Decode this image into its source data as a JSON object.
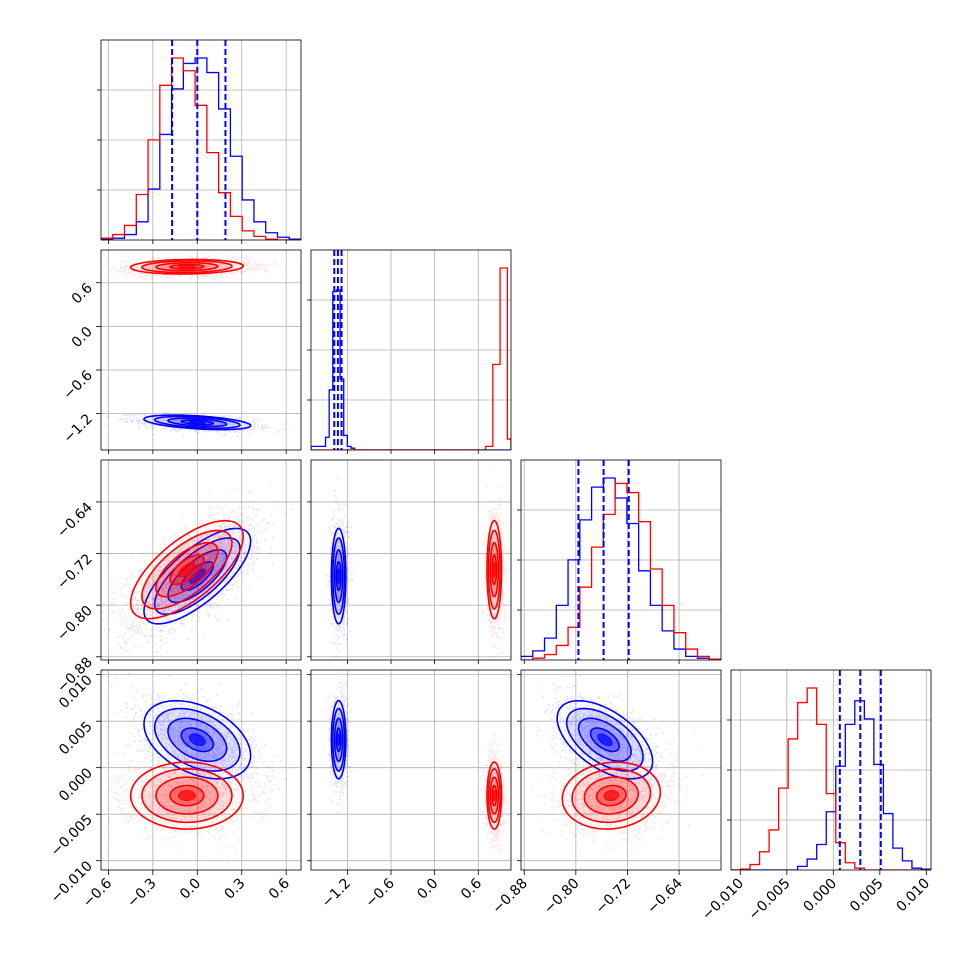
{
  "chart_data": {
    "type": "corner",
    "parameters": 4,
    "series": [
      {
        "name": "",
        "color": "#ff0000"
      },
      {
        "name": "",
        "color": "#0000ff"
      }
    ],
    "ranges": [
      [
        -0.65,
        0.7
      ],
      [
        -1.7,
        1.05
      ],
      [
        -0.885,
        -0.575
      ],
      [
        -0.011,
        0.0105
      ]
    ],
    "ticks": [
      {
        "values": [
          -0.6,
          -0.3,
          0.0,
          0.3,
          0.6
        ],
        "labels": [
          "−0.6",
          "−0.3",
          "0.0",
          "0.3",
          "0.6"
        ]
      },
      {
        "values": [
          -1.2,
          -0.6,
          0.0,
          0.6
        ],
        "labels": [
          "−1.2",
          "−0.6",
          "0.0",
          "0.6"
        ]
      },
      {
        "values": [
          -0.88,
          -0.8,
          -0.72,
          -0.64
        ],
        "labels": [
          "−0.88",
          "−0.80",
          "−0.72",
          "−0.64"
        ]
      },
      {
        "values": [
          -0.01,
          -0.005,
          0.0,
          0.005,
          0.01
        ],
        "labels": [
          "−0.010",
          "−0.005",
          "0.000",
          "0.005",
          "0.010"
        ]
      }
    ],
    "quantile_lines_blue": [
      [
        -0.17,
        0.0,
        0.19
      ],
      [
        -1.38,
        -1.33,
        -1.28
      ],
      [
        -0.796,
        -0.757,
        -0.718
      ],
      [
        0.0007,
        0.0029,
        0.0051
      ]
    ],
    "histograms": [
      {
        "blue": [
          0.005,
          0.01,
          0.03,
          0.1,
          0.28,
          0.58,
          0.83,
          0.97,
          1.0,
          0.92,
          0.72,
          0.46,
          0.22,
          0.1,
          0.04,
          0.015,
          0.005
        ],
        "red": [
          0.01,
          0.03,
          0.08,
          0.25,
          0.55,
          0.85,
          1.0,
          0.93,
          0.74,
          0.48,
          0.26,
          0.13,
          0.05,
          0.02,
          0.005,
          0.0,
          0.0
        ]
      },
      {
        "bins": [
          -1.7,
          -1.5,
          -1.45,
          -1.4,
          -1.35,
          -1.3,
          -1.25,
          -1.2,
          -1.15,
          -1.1,
          0.7,
          0.8,
          0.9,
          1.0,
          1.05
        ],
        "blue": [
          0.02,
          0.07,
          0.33,
          0.87,
          0.88,
          0.39,
          0.08,
          0.02,
          0.01,
          0.0,
          0.0,
          0.0,
          0.0,
          0.0
        ],
        "red": [
          0.0,
          0.0,
          0.0,
          0.0,
          0.0,
          0.0,
          0.0,
          0.0,
          0.0,
          0.0,
          0.02,
          0.47,
          1.0,
          0.06
        ]
      },
      {
        "blue": [
          0.02,
          0.05,
          0.12,
          0.3,
          0.55,
          0.77,
          0.95,
          1.0,
          0.89,
          0.75,
          0.49,
          0.3,
          0.16,
          0.06,
          0.02,
          0.01,
          0.005
        ],
        "red": [
          0.0,
          0.01,
          0.03,
          0.08,
          0.18,
          0.4,
          0.62,
          0.8,
          0.97,
          0.92,
          0.76,
          0.5,
          0.3,
          0.15,
          0.06,
          0.02,
          0.005
        ]
      },
      {
        "blue": [
          0.0,
          0.0,
          0.0,
          0.0,
          0.0,
          0.0,
          0.0,
          0.02,
          0.06,
          0.14,
          0.32,
          0.57,
          0.8,
          0.93,
          0.83,
          0.58,
          0.31,
          0.12,
          0.05,
          0.01,
          0.005
        ],
        "red": [
          0.0,
          0.005,
          0.03,
          0.1,
          0.22,
          0.45,
          0.72,
          0.92,
          1.0,
          0.8,
          0.42,
          0.15,
          0.04,
          0.01,
          0.0,
          0.0,
          0.0,
          0.0,
          0.0,
          0.0,
          0.0
        ]
      }
    ],
    "distributions": {
      "red": {
        "means": [
          -0.07,
          0.82,
          -0.745,
          -0.003
        ],
        "sds": [
          0.19,
          0.05,
          0.038,
          0.0018
        ]
      },
      "blue": {
        "means": [
          0.0,
          -1.32,
          -0.755,
          0.003
        ],
        "sds": [
          0.18,
          0.05,
          0.037,
          0.0021
        ]
      }
    },
    "correlations": {
      "red": {
        "0-2": 0.68,
        "1-0": 0.1,
        "3-0": 0.0,
        "3-2": 0.1,
        "2-1": 0.0,
        "3-1": 0.0
      },
      "blue": {
        "0-2": 0.73,
        "1-0": -0.45,
        "3-0": -0.4,
        "3-2": -0.55,
        "2-1": 0.0,
        "3-1": 0.0
      }
    },
    "grid": true,
    "legend": "none"
  }
}
